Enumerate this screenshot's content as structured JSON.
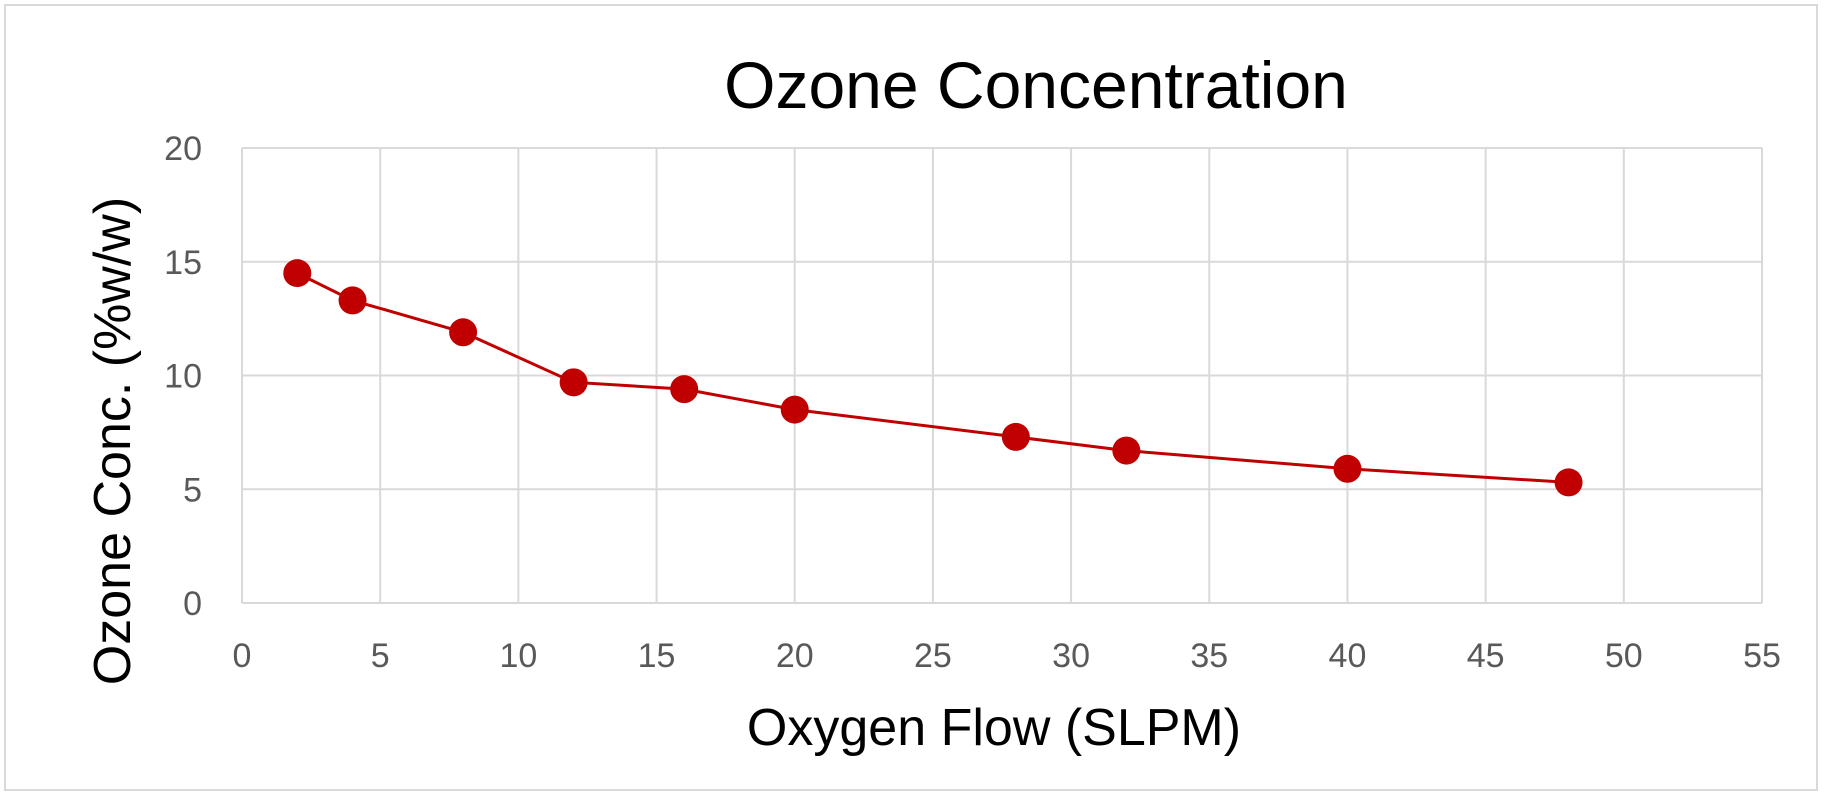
{
  "chart_data": {
    "type": "line",
    "title": "Ozone Concentration",
    "xlabel": "Oxygen Flow (SLPM)",
    "ylabel": "Ozone Conc. (%w/w)",
    "xlim": [
      0,
      55
    ],
    "ylim": [
      0,
      20
    ],
    "x_ticks": [
      "0",
      "5",
      "10",
      "15",
      "20",
      "25",
      "30",
      "35",
      "40",
      "45",
      "50",
      "55"
    ],
    "y_ticks": [
      "0",
      "5",
      "10",
      "15",
      "20"
    ],
    "grid": true,
    "legend": "none",
    "series": [
      {
        "color": "#c00000",
        "x": [
          2,
          4,
          8,
          12,
          16,
          20,
          28,
          32,
          40,
          48
        ],
        "y": [
          14.5,
          13.3,
          11.9,
          9.7,
          9.4,
          8.5,
          7.3,
          6.7,
          5.9,
          5.3
        ]
      }
    ]
  }
}
